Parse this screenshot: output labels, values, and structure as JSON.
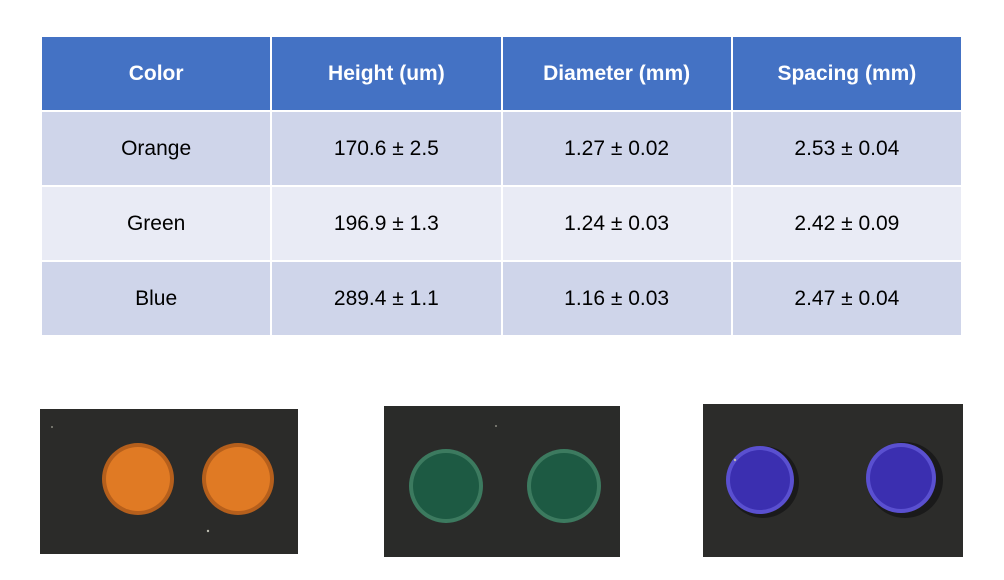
{
  "table": {
    "headers": [
      "Color",
      "Height (um)",
      "Diameter (mm)",
      "Spacing (mm)"
    ],
    "rows": [
      [
        "Orange",
        "170.6 ± 2.5",
        "1.27 ± 0.02",
        "2.53 ± 0.04"
      ],
      [
        "Green",
        "196.9 ± 1.3",
        "1.24 ± 0.03",
        "2.42 ± 0.09"
      ],
      [
        "Blue",
        "289.4 ± 1.1",
        "1.16 ± 0.03",
        "2.47 ± 0.04"
      ]
    ]
  },
  "colors": {
    "header_bg": "#4472c4",
    "row_odd_bg": "#cfd5ea",
    "row_even_bg": "#e9ebf5",
    "photo_bg": "#2b2b29",
    "orange_dot": "#e07a24",
    "green_dot": "#1d5a43",
    "blue_dot": "#3b2fb0"
  }
}
